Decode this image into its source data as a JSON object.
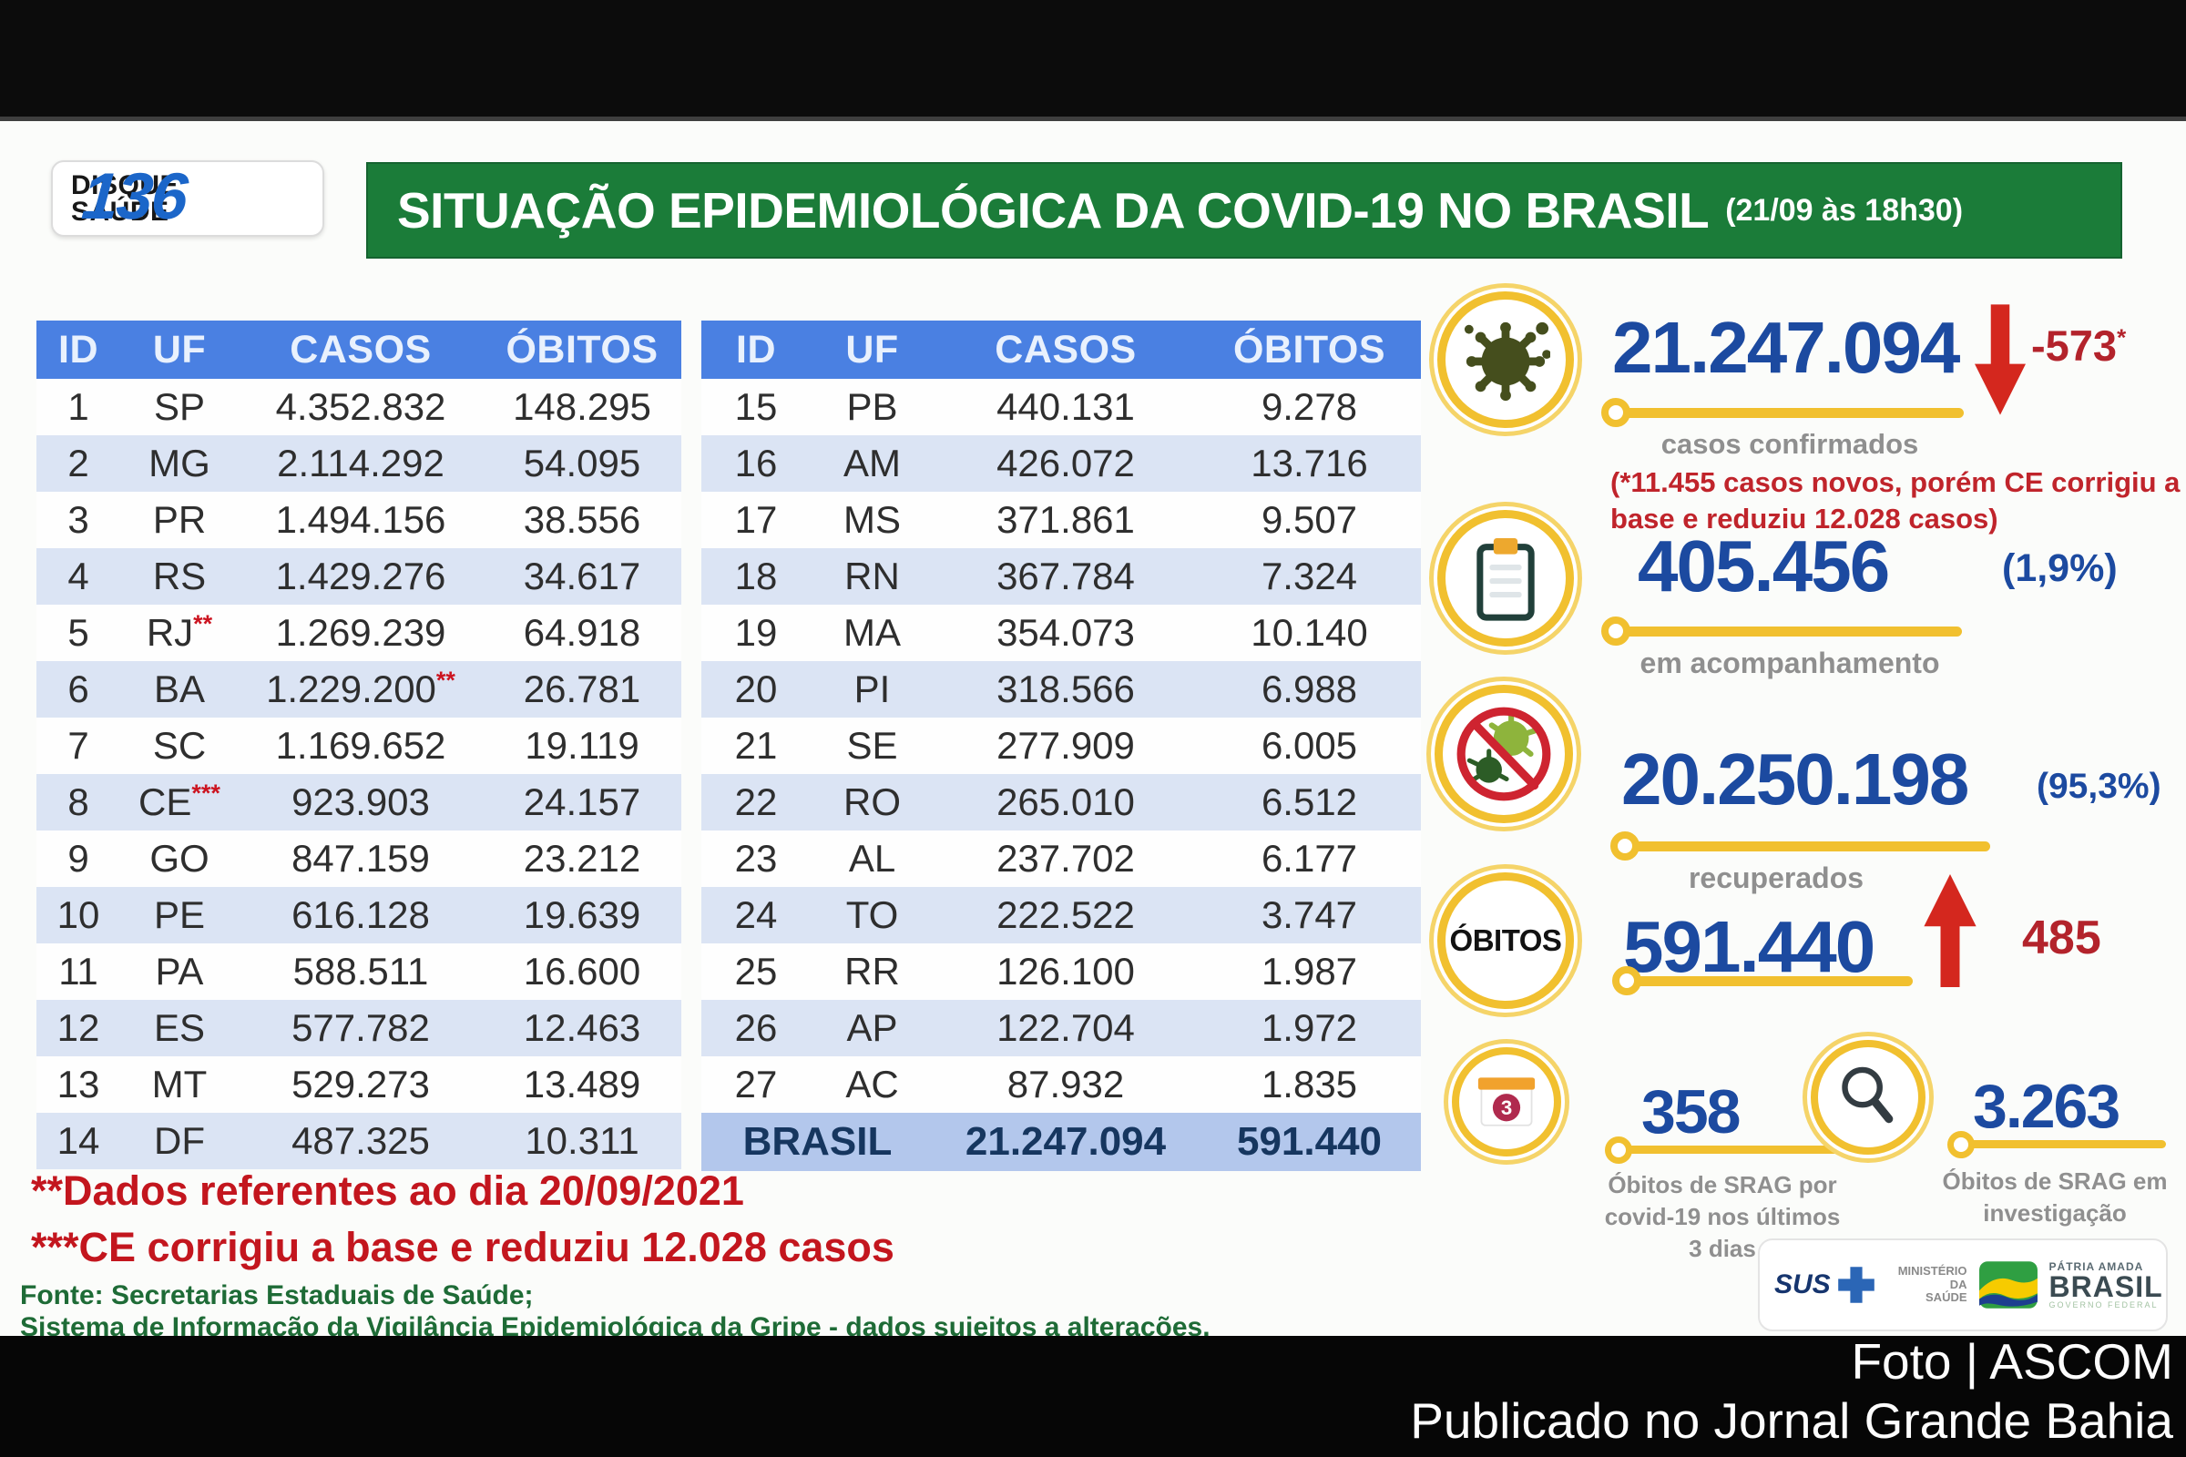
{
  "page": {
    "caption_line1": "Foto | ASCOM",
    "caption_line2": "Publicado no Jornal Grande Bahia"
  },
  "header": {
    "badge_line1": "DISQUE",
    "badge_line2": "SAÚDE",
    "badge_number": "136",
    "title": "SITUAÇÃO EPIDEMIOLÓGICA DA COVID-19 NO BRASIL",
    "title_time": "(21/09 às 18h30)"
  },
  "tables": {
    "columns": [
      "ID",
      "UF",
      "CASOS",
      "ÓBITOS"
    ],
    "left_rows": [
      {
        "id": "1",
        "uf": "SP",
        "casos": "4.352.832",
        "obitos": "148.295"
      },
      {
        "id": "2",
        "uf": "MG",
        "casos": "2.114.292",
        "obitos": "54.095"
      },
      {
        "id": "3",
        "uf": "PR",
        "casos": "1.494.156",
        "obitos": "38.556"
      },
      {
        "id": "4",
        "uf": "RS",
        "casos": "1.429.276",
        "obitos": "34.617"
      },
      {
        "id": "5",
        "uf": "RJ",
        "uf_mark": "**",
        "casos": "1.269.239",
        "obitos": "64.918"
      },
      {
        "id": "6",
        "uf": "BA",
        "casos": "1.229.200",
        "casos_mark": "**",
        "obitos": "26.781"
      },
      {
        "id": "7",
        "uf": "SC",
        "casos": "1.169.652",
        "obitos": "19.119"
      },
      {
        "id": "8",
        "uf": "CE",
        "uf_mark": "***",
        "casos": "923.903",
        "obitos": "24.157"
      },
      {
        "id": "9",
        "uf": "GO",
        "casos": "847.159",
        "obitos": "23.212"
      },
      {
        "id": "10",
        "uf": "PE",
        "casos": "616.128",
        "obitos": "19.639"
      },
      {
        "id": "11",
        "uf": "PA",
        "casos": "588.511",
        "obitos": "16.600"
      },
      {
        "id": "12",
        "uf": "ES",
        "casos": "577.782",
        "obitos": "12.463"
      },
      {
        "id": "13",
        "uf": "MT",
        "casos": "529.273",
        "obitos": "13.489"
      },
      {
        "id": "14",
        "uf": "DF",
        "casos": "487.325",
        "obitos": "10.311"
      }
    ],
    "right_rows": [
      {
        "id": "15",
        "uf": "PB",
        "casos": "440.131",
        "obitos": "9.278"
      },
      {
        "id": "16",
        "uf": "AM",
        "casos": "426.072",
        "obitos": "13.716"
      },
      {
        "id": "17",
        "uf": "MS",
        "casos": "371.861",
        "obitos": "9.507"
      },
      {
        "id": "18",
        "uf": "RN",
        "casos": "367.784",
        "obitos": "7.324"
      },
      {
        "id": "19",
        "uf": "MA",
        "casos": "354.073",
        "obitos": "10.140"
      },
      {
        "id": "20",
        "uf": "PI",
        "casos": "318.566",
        "obitos": "6.988"
      },
      {
        "id": "21",
        "uf": "SE",
        "casos": "277.909",
        "obitos": "6.005"
      },
      {
        "id": "22",
        "uf": "RO",
        "casos": "265.010",
        "obitos": "6.512"
      },
      {
        "id": "23",
        "uf": "AL",
        "casos": "237.702",
        "obitos": "6.177"
      },
      {
        "id": "24",
        "uf": "TO",
        "casos": "222.522",
        "obitos": "3.747"
      },
      {
        "id": "25",
        "uf": "RR",
        "casos": "126.100",
        "obitos": "1.987"
      },
      {
        "id": "26",
        "uf": "AP",
        "casos": "122.704",
        "obitos": "1.972"
      },
      {
        "id": "27",
        "uf": "AC",
        "casos": "87.932",
        "obitos": "1.835"
      }
    ],
    "total": {
      "label": "BRASIL",
      "casos": "21.247.094",
      "obitos": "591.440"
    }
  },
  "stats": {
    "confirmed": {
      "value": "21.247.094",
      "delta": "-573",
      "delta_sup": "*",
      "caption": "casos confirmados",
      "note1": "(*11.455 casos novos, porém CE corrigiu a",
      "note2": "base e reduziu 12.028 casos)"
    },
    "followup": {
      "value": "405.456",
      "pct": "(1,9%)",
      "caption": "em acompanhamento"
    },
    "recovered": {
      "value": "20.250.198",
      "pct": "(95,3%)",
      "caption": "recuperados"
    },
    "deaths": {
      "badge": "ÓBITOS",
      "value": "591.440",
      "delta": "485"
    },
    "srag_recent": {
      "icon_number": "3",
      "value": "358",
      "caption1": "Óbitos de SRAG por",
      "caption2": "covid-19 nos últimos",
      "caption3": "3 dias"
    },
    "srag_investigation": {
      "value": "3.263",
      "caption1": "Óbitos de SRAG em",
      "caption2": "investigação"
    }
  },
  "footnotes": {
    "note2": "**Dados referentes ao dia 20/09/2021",
    "note3": "***CE corrigiu a base e reduziu 12.028 casos",
    "source1": "Fonte: Secretarias Estaduais de Saúde;",
    "source2": "Sistema de Informação da Vigilância Epidemiológica da Gripe - dados sujeitos a alterações."
  },
  "logos": {
    "sus": "SUS",
    "ministry_line1": "MINISTÉRIO DA",
    "ministry_line2": "SAÚDE",
    "brand_top": "PÁTRIA AMADA",
    "brand": "BRASIL",
    "brand_sub": "GOVERNO FEDERAL"
  },
  "chart_data": {
    "type": "table",
    "title": "SITUAÇÃO EPIDEMIOLÓGICA DA COVID-19 NO BRASIL (21/09 às 18h30)",
    "columns": [
      "ID",
      "UF",
      "CASOS",
      "ÓBITOS"
    ],
    "rows": [
      [
        1,
        "SP",
        4352832,
        148295
      ],
      [
        2,
        "MG",
        2114292,
        54095
      ],
      [
        3,
        "PR",
        1494156,
        38556
      ],
      [
        4,
        "RS",
        1429276,
        34617
      ],
      [
        5,
        "RJ",
        1269239,
        64918
      ],
      [
        6,
        "BA",
        1229200,
        26781
      ],
      [
        7,
        "SC",
        1169652,
        19119
      ],
      [
        8,
        "CE",
        923903,
        24157
      ],
      [
        9,
        "GO",
        847159,
        23212
      ],
      [
        10,
        "PE",
        616128,
        19639
      ],
      [
        11,
        "PA",
        588511,
        16600
      ],
      [
        12,
        "ES",
        577782,
        12463
      ],
      [
        13,
        "MT",
        529273,
        13489
      ],
      [
        14,
        "DF",
        487325,
        10311
      ],
      [
        15,
        "PB",
        440131,
        9278
      ],
      [
        16,
        "AM",
        426072,
        13716
      ],
      [
        17,
        "MS",
        371861,
        9507
      ],
      [
        18,
        "RN",
        367784,
        7324
      ],
      [
        19,
        "MA",
        354073,
        10140
      ],
      [
        20,
        "PI",
        318566,
        6988
      ],
      [
        21,
        "SE",
        277909,
        6005
      ],
      [
        22,
        "RO",
        265010,
        6512
      ],
      [
        23,
        "AL",
        237702,
        6177
      ],
      [
        24,
        "TO",
        222522,
        3747
      ],
      [
        25,
        "RR",
        126100,
        1987
      ],
      [
        26,
        "AP",
        122704,
        1972
      ],
      [
        27,
        "AC",
        87932,
        1835
      ]
    ],
    "total": {
      "label": "BRASIL",
      "casos": 21247094,
      "obitos": 591440
    },
    "summary": {
      "casos_confirmados": 21247094,
      "variacao_casos": -573,
      "casos_novos_nota": 11455,
      "reducao_base_ce": 12028,
      "em_acompanhamento": 405456,
      "em_acompanhamento_pct": 1.9,
      "recuperados": 20250198,
      "recuperados_pct": 95.3,
      "obitos": 591440,
      "obitos_novos": 485,
      "obitos_srag_3dias": 358,
      "obitos_srag_investigacao": 3263
    }
  }
}
